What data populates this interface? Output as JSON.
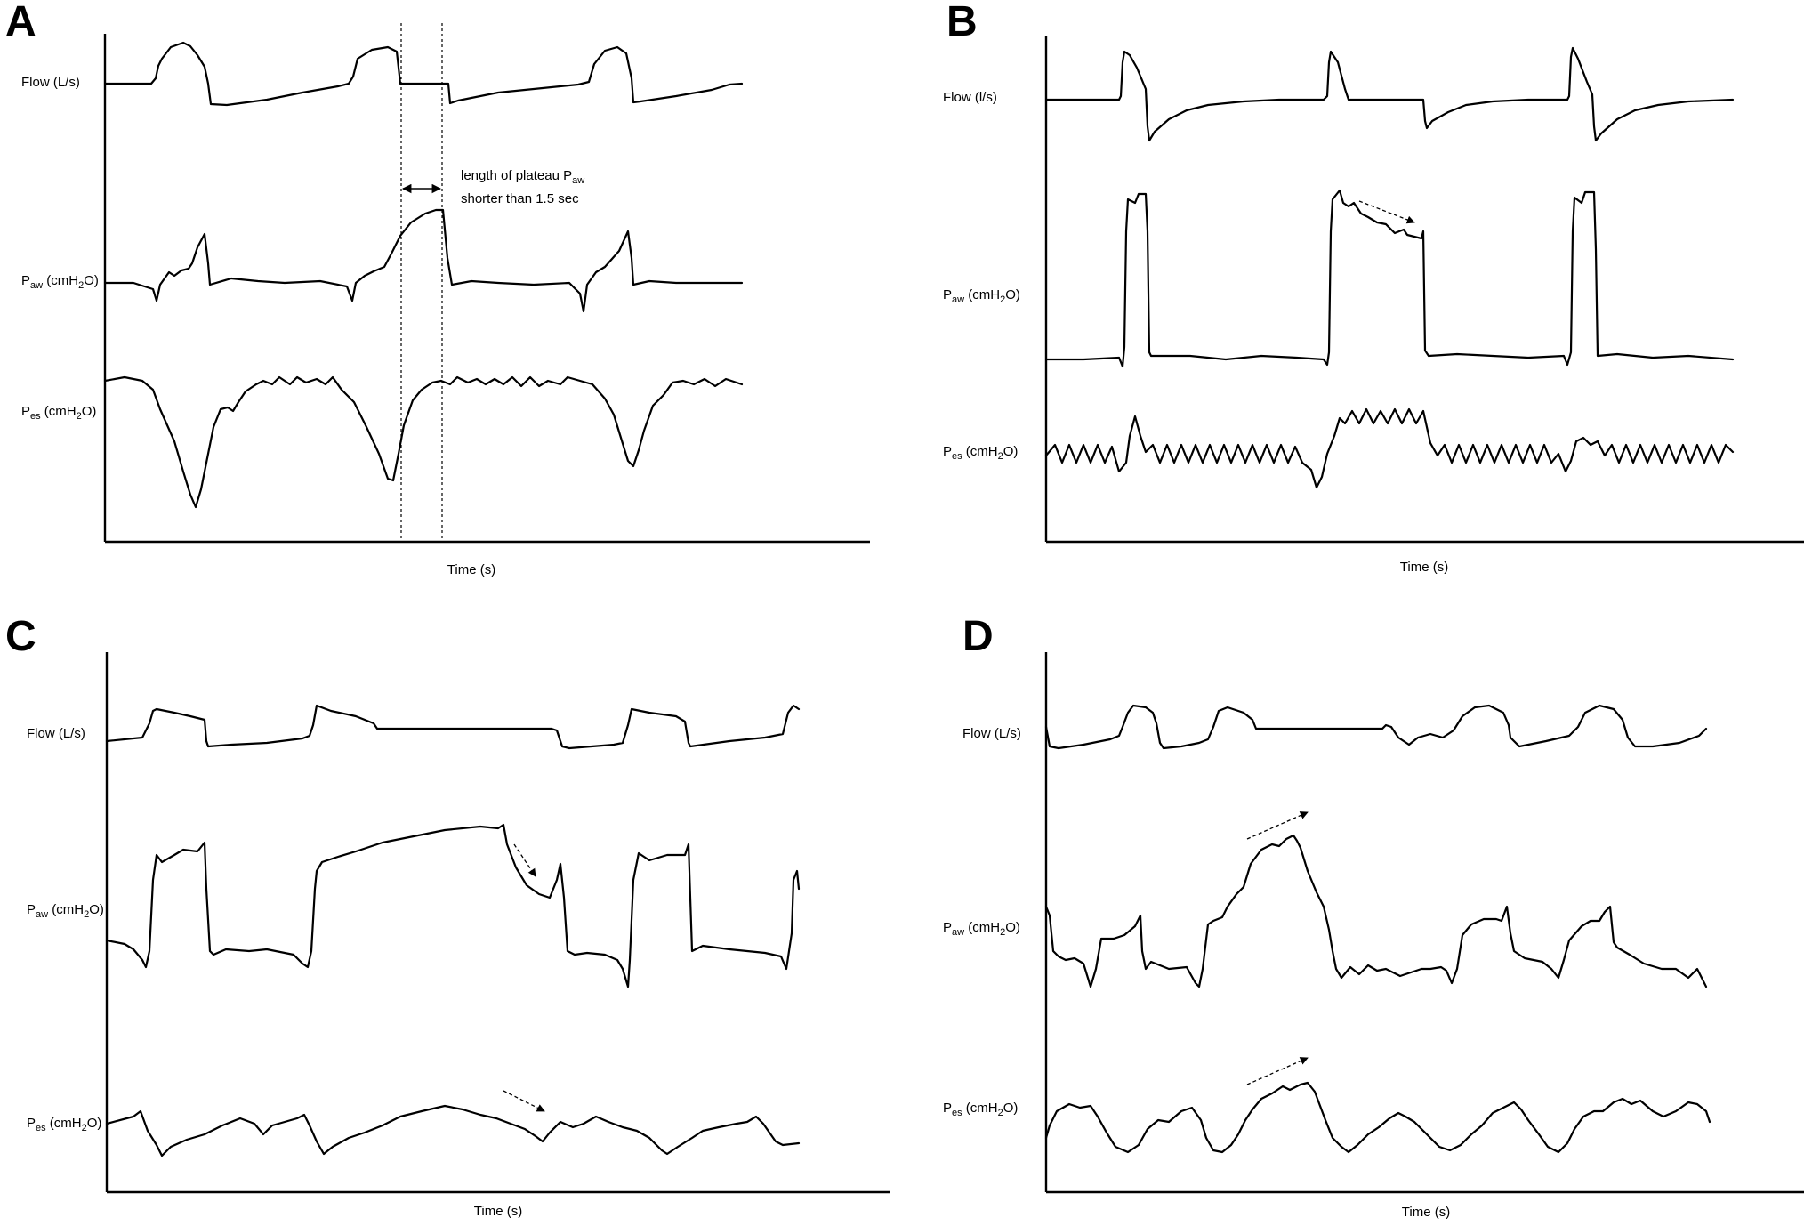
{
  "panels": [
    {
      "id": "A",
      "letter": "A",
      "labels": {
        "flow": {
          "base": "Flow (L/s)",
          "sub": ""
        },
        "paw": {
          "base": "P",
          "sub": "aw",
          "suffix": " (cmH",
          "sub2": "2",
          "end": "O)"
        },
        "pes": {
          "base": "P",
          "sub": "es",
          "suffix": " (cmH",
          "sub2": "2",
          "end": "O)"
        }
      },
      "xlabel": "Time (s)",
      "annotation": {
        "line1_base": "length of plateau P",
        "line1_sub": "aw",
        "line2": "shorter than 1.5 sec"
      }
    },
    {
      "id": "B",
      "letter": "B",
      "labels": {
        "flow": {
          "base": "Flow (l/s)",
          "sub": ""
        },
        "paw": {
          "base": "P",
          "sub": "aw",
          "suffix": " (cmH",
          "sub2": "2",
          "end": "O)"
        },
        "pes": {
          "base": "P",
          "sub": "es",
          "suffix": " (cmH",
          "sub2": "2",
          "end": "O)"
        }
      },
      "xlabel": "Time (s)"
    },
    {
      "id": "C",
      "letter": "C",
      "labels": {
        "flow": {
          "base": "Flow (L/s)",
          "sub": ""
        },
        "paw": {
          "base": "P",
          "sub": "aw",
          "suffix": " (cmH",
          "sub2": "2",
          "end": "O)"
        },
        "pes": {
          "base": "P",
          "sub": "es",
          "suffix": " (cmH",
          "sub2": "2",
          "end": "O)"
        }
      },
      "xlabel": "Time (s)"
    },
    {
      "id": "D",
      "letter": "D",
      "labels": {
        "flow": {
          "base": "Flow (L/s)",
          "sub": ""
        },
        "paw": {
          "base": "P",
          "sub": "aw",
          "suffix": " (cmH",
          "sub2": "2",
          "end": "O)"
        },
        "pes": {
          "base": "P",
          "sub": "es",
          "suffix": " (cmH",
          "sub2": "2",
          "end": "O)"
        }
      },
      "xlabel": "Time (s)"
    }
  ],
  "chart_data": [
    {
      "type": "line",
      "panel": "A",
      "xlabel": "Time (s)",
      "ylabel": "",
      "grid": false,
      "series": [
        {
          "name": "Flow (L/s)"
        },
        {
          "name": "Paw (cmH2O)"
        },
        {
          "name": "Pes (cmH2O)"
        }
      ],
      "annotations": [
        "length of plateau Paw shorter than 1.5 sec"
      ]
    },
    {
      "type": "line",
      "panel": "B",
      "xlabel": "Time (s)",
      "ylabel": "",
      "grid": false,
      "series": [
        {
          "name": "Flow (l/s)"
        },
        {
          "name": "Paw (cmH2O)"
        },
        {
          "name": "Pes (cmH2O)"
        }
      ]
    },
    {
      "type": "line",
      "panel": "C",
      "xlabel": "Time (s)",
      "ylabel": "",
      "grid": false,
      "series": [
        {
          "name": "Flow (L/s)"
        },
        {
          "name": "Paw (cmH2O)"
        },
        {
          "name": "Pes (cmH2O)"
        }
      ]
    },
    {
      "type": "line",
      "panel": "D",
      "xlabel": "Time (s)",
      "ylabel": "",
      "grid": false,
      "series": [
        {
          "name": "Flow (L/s)"
        },
        {
          "name": "Paw (cmH2O)"
        },
        {
          "name": "Pes (cmH2O)"
        }
      ]
    }
  ]
}
